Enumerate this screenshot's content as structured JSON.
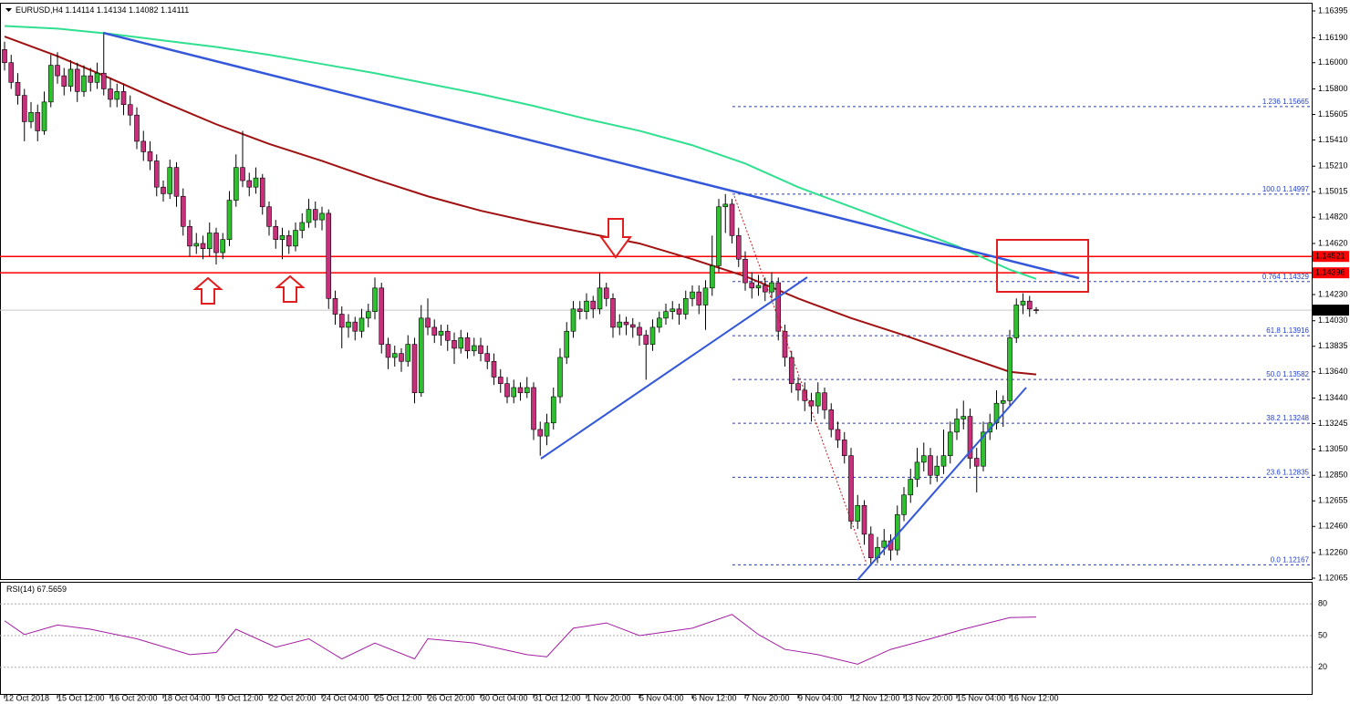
{
  "chart_data": {
    "type": "candlestick",
    "symbol": "EURUSD,H4",
    "up_color": "#2fc02f",
    "down_color": "#c8307c",
    "wick_color": "#000000",
    "ylim": [
      1.12065,
      1.16395
    ],
    "yticks": [
      1.16395,
      {
        "value": 1.1619,
        "label": "1.16190"
      },
      {
        "value": 1.16,
        "label": "1.16000"
      },
      {
        "value": 1.158,
        "label": "1.15800"
      },
      1.15605,
      {
        "value": 1.1541,
        "label": "1.15410"
      },
      {
        "value": 1.1521,
        "label": "1.15210"
      },
      1.15015,
      {
        "value": 1.1482,
        "label": "1.14820"
      },
      {
        "value": 1.1462,
        "label": "1.14620"
      },
      {
        "value": 1.1423,
        "label": "1.14230"
      },
      {
        "value": 1.1403,
        "label": "1.14030"
      },
      1.13835,
      {
        "value": 1.1364,
        "label": "1.13640"
      },
      {
        "value": 1.1344,
        "label": "1.13440"
      },
      1.13245,
      {
        "value": 1.1305,
        "label": "1.13050"
      },
      {
        "value": 1.1285,
        "label": "1.12850"
      },
      1.12655,
      {
        "value": 1.1246,
        "label": "1.12460"
      },
      {
        "value": 1.1226,
        "label": "1.12260"
      },
      1.12065
    ],
    "categories": [
      "12 Oct 2018",
      null,
      null,
      null,
      null,
      null,
      null,
      null,
      "15 Oct 12:00",
      null,
      null,
      null,
      null,
      null,
      null,
      null,
      "16 Oct 20:00",
      null,
      null,
      null,
      null,
      null,
      null,
      null,
      "18 Oct 04:00",
      null,
      null,
      null,
      null,
      null,
      null,
      null,
      "19 Oct 12:00",
      null,
      null,
      null,
      null,
      null,
      null,
      null,
      "22 Oct 20:00",
      null,
      null,
      null,
      null,
      null,
      null,
      null,
      "24 Oct 04:00",
      null,
      null,
      null,
      null,
      null,
      null,
      null,
      "25 Oct 12:00",
      null,
      null,
      null,
      null,
      null,
      null,
      null,
      "26 Oct 20:00",
      null,
      null,
      null,
      null,
      null,
      null,
      null,
      "30 Oct 04:00",
      null,
      null,
      null,
      null,
      null,
      null,
      null,
      "31 Oct 12:00",
      null,
      null,
      null,
      null,
      null,
      null,
      null,
      "1 Nov 20:00",
      null,
      null,
      null,
      null,
      null,
      null,
      null,
      "5 Nov 04:00",
      null,
      null,
      null,
      null,
      null,
      null,
      null,
      "6 Nov 12:00",
      null,
      null,
      null,
      null,
      null,
      null,
      null,
      "7 Nov 20:00",
      null,
      null,
      null,
      null,
      null,
      null,
      null,
      "9 Nov 04:00",
      null,
      null,
      null,
      null,
      null,
      null,
      null,
      "12 Nov 12:00",
      null,
      null,
      null,
      null,
      null,
      null,
      null,
      "13 Nov 20:00",
      null,
      null,
      null,
      null,
      null,
      null,
      null,
      "15 Nov 04:00",
      null,
      null,
      null,
      null,
      null,
      null,
      null,
      "16 Nov 12:00",
      null,
      null,
      null,
      null
    ],
    "ohlc": [
      [
        1.161,
        1.1616,
        1.1594,
        1.16
      ],
      [
        1.16,
        1.1606,
        1.158,
        1.1585
      ],
      [
        1.1585,
        1.1592,
        1.1568,
        1.1575
      ],
      [
        1.1575,
        1.158,
        1.154,
        1.1555
      ],
      [
        1.1555,
        1.157,
        1.155,
        1.1562
      ],
      [
        1.1562,
        1.1568,
        1.154,
        1.1548
      ],
      [
        1.1548,
        1.1578,
        1.1545,
        1.157
      ],
      [
        1.157,
        1.1606,
        1.1566,
        1.1598
      ],
      [
        1.1598,
        1.1608,
        1.1584,
        1.159
      ],
      [
        1.159,
        1.1596,
        1.1575,
        1.1582
      ],
      [
        1.1582,
        1.1602,
        1.1578,
        1.1595
      ],
      [
        1.1595,
        1.16,
        1.157,
        1.1578
      ],
      [
        1.1578,
        1.1598,
        1.1574,
        1.159
      ],
      [
        1.159,
        1.1596,
        1.1578,
        1.1585
      ],
      [
        1.1585,
        1.16,
        1.158,
        1.1592
      ],
      [
        1.1592,
        1.1623,
        1.1575,
        1.158
      ],
      [
        1.158,
        1.1588,
        1.1566,
        1.1572
      ],
      [
        1.1572,
        1.1584,
        1.1566,
        1.1578
      ],
      [
        1.1578,
        1.1584,
        1.156,
        1.1568
      ],
      [
        1.1568,
        1.1575,
        1.1552,
        1.156
      ],
      [
        1.156,
        1.1566,
        1.1534,
        1.154
      ],
      [
        1.154,
        1.1548,
        1.1525,
        1.1532
      ],
      [
        1.1532,
        1.154,
        1.1518,
        1.1525
      ],
      [
        1.1525,
        1.153,
        1.1498,
        1.1505
      ],
      [
        1.1505,
        1.151,
        1.1494,
        1.15
      ],
      [
        1.15,
        1.1526,
        1.1496,
        1.152
      ],
      [
        1.152,
        1.1524,
        1.149,
        1.1498
      ],
      [
        1.1498,
        1.1504,
        1.1468,
        1.1475
      ],
      [
        1.1475,
        1.148,
        1.1452,
        1.146
      ],
      [
        1.146,
        1.147,
        1.1454,
        1.1462
      ],
      [
        1.1462,
        1.1468,
        1.145,
        1.1458
      ],
      [
        1.1458,
        1.1478,
        1.1452,
        1.147
      ],
      [
        1.147,
        1.1474,
        1.1446,
        1.1455
      ],
      [
        1.1455,
        1.147,
        1.145,
        1.1465
      ],
      [
        1.1465,
        1.1502,
        1.146,
        1.1495
      ],
      [
        1.1495,
        1.153,
        1.149,
        1.152
      ],
      [
        1.152,
        1.1548,
        1.1505,
        1.151
      ],
      [
        1.151,
        1.1516,
        1.1498,
        1.1505
      ],
      [
        1.1505,
        1.152,
        1.15,
        1.1512
      ],
      [
        1.1512,
        1.1515,
        1.1484,
        1.149
      ],
      [
        1.149,
        1.1494,
        1.1468,
        1.1475
      ],
      [
        1.1475,
        1.148,
        1.1458,
        1.1465
      ],
      [
        1.1465,
        1.1474,
        1.145,
        1.1468
      ],
      [
        1.1468,
        1.1472,
        1.1454,
        1.146
      ],
      [
        1.146,
        1.1478,
        1.1456,
        1.1472
      ],
      [
        1.1472,
        1.1485,
        1.1466,
        1.1478
      ],
      [
        1.1478,
        1.1496,
        1.1474,
        1.1488
      ],
      [
        1.1488,
        1.1494,
        1.1474,
        1.148
      ],
      [
        1.148,
        1.149,
        1.1472,
        1.1485
      ],
      [
        1.1485,
        1.1488,
        1.1412,
        1.142
      ],
      [
        1.142,
        1.1426,
        1.14,
        1.1408
      ],
      [
        1.1408,
        1.1414,
        1.1382,
        1.1398
      ],
      [
        1.1398,
        1.1408,
        1.139,
        1.1402
      ],
      [
        1.1402,
        1.1406,
        1.1388,
        1.1395
      ],
      [
        1.1395,
        1.1412,
        1.139,
        1.1405
      ],
      [
        1.1405,
        1.1416,
        1.1398,
        1.141
      ],
      [
        1.141,
        1.1436,
        1.1404,
        1.1428
      ],
      [
        1.1428,
        1.1432,
        1.1378,
        1.1385
      ],
      [
        1.1385,
        1.139,
        1.1366,
        1.1375
      ],
      [
        1.1375,
        1.1384,
        1.1368,
        1.1378
      ],
      [
        1.1378,
        1.1382,
        1.1364,
        1.1372
      ],
      [
        1.1372,
        1.1392,
        1.1368,
        1.1385
      ],
      [
        1.1385,
        1.139,
        1.134,
        1.1348
      ],
      [
        1.1348,
        1.1415,
        1.1345,
        1.1405
      ],
      [
        1.1405,
        1.142,
        1.1392,
        1.1398
      ],
      [
        1.1398,
        1.1404,
        1.1386,
        1.1392
      ],
      [
        1.1392,
        1.14,
        1.1384,
        1.1395
      ],
      [
        1.1395,
        1.14,
        1.138,
        1.1388
      ],
      [
        1.1388,
        1.1394,
        1.137,
        1.1382
      ],
      [
        1.1382,
        1.1396,
        1.1378,
        1.139
      ],
      [
        1.139,
        1.1394,
        1.1374,
        1.138
      ],
      [
        1.138,
        1.139,
        1.1376,
        1.1384
      ],
      [
        1.1384,
        1.139,
        1.1372,
        1.1378
      ],
      [
        1.1378,
        1.1384,
        1.1366,
        1.1372
      ],
      [
        1.1372,
        1.1378,
        1.1354,
        1.136
      ],
      [
        1.136,
        1.1366,
        1.1348,
        1.1355
      ],
      [
        1.1355,
        1.136,
        1.134,
        1.1345
      ],
      [
        1.1345,
        1.1358,
        1.134,
        1.1352
      ],
      [
        1.1352,
        1.1356,
        1.1342,
        1.1348
      ],
      [
        1.1348,
        1.136,
        1.1344,
        1.1352
      ],
      [
        1.1352,
        1.1356,
        1.1312,
        1.132
      ],
      [
        1.132,
        1.1326,
        1.13,
        1.1315
      ],
      [
        1.1315,
        1.1332,
        1.1308,
        1.1325
      ],
      [
        1.1325,
        1.1352,
        1.132,
        1.1345
      ],
      [
        1.1345,
        1.1382,
        1.134,
        1.1375
      ],
      [
        1.1375,
        1.1402,
        1.137,
        1.1395
      ],
      [
        1.1395,
        1.1418,
        1.139,
        1.1412
      ],
      [
        1.1412,
        1.1418,
        1.1404,
        1.141
      ],
      [
        1.141,
        1.1424,
        1.1404,
        1.1418
      ],
      [
        1.1418,
        1.1422,
        1.1405,
        1.1412
      ],
      [
        1.1412,
        1.144,
        1.1408,
        1.1428
      ],
      [
        1.1428,
        1.1432,
        1.1414,
        1.142
      ],
      [
        1.142,
        1.1424,
        1.139,
        1.1398
      ],
      [
        1.1398,
        1.1408,
        1.1392,
        1.1402
      ],
      [
        1.1402,
        1.1406,
        1.1392,
        1.14
      ],
      [
        1.14,
        1.1405,
        1.139,
        1.1398
      ],
      [
        1.1398,
        1.1402,
        1.1384,
        1.1392
      ],
      [
        1.1392,
        1.1396,
        1.1358,
        1.1385
      ],
      [
        1.1385,
        1.1404,
        1.138,
        1.1398
      ],
      [
        1.1398,
        1.141,
        1.1394,
        1.1405
      ],
      [
        1.1405,
        1.1416,
        1.14,
        1.141
      ],
      [
        1.141,
        1.1418,
        1.1404,
        1.1412
      ],
      [
        1.1412,
        1.1416,
        1.14,
        1.1408
      ],
      [
        1.1408,
        1.1426,
        1.1404,
        1.142
      ],
      [
        1.142,
        1.143,
        1.1414,
        1.1425
      ],
      [
        1.1425,
        1.143,
        1.1408,
        1.1415
      ],
      [
        1.1415,
        1.1434,
        1.1396,
        1.1428
      ],
      [
        1.1428,
        1.1468,
        1.1422,
        1.1445
      ],
      [
        1.1445,
        1.1496,
        1.144,
        1.149
      ],
      [
        1.149,
        1.14997,
        1.147,
        1.1492
      ],
      [
        1.1492,
        1.1496,
        1.1462,
        1.1468
      ],
      [
        1.1468,
        1.1474,
        1.1444,
        1.145
      ],
      [
        1.145,
        1.1456,
        1.1426,
        1.1432
      ],
      [
        1.1432,
        1.144,
        1.142,
        1.1428
      ],
      [
        1.1428,
        1.1438,
        1.1422,
        1.143
      ],
      [
        1.143,
        1.1436,
        1.1418,
        1.1425
      ],
      [
        1.1425,
        1.144,
        1.142,
        1.1432
      ],
      [
        1.1432,
        1.1436,
        1.1388,
        1.1395
      ],
      [
        1.1395,
        1.14,
        1.1368,
        1.1375
      ],
      [
        1.1375,
        1.138,
        1.1348,
        1.1355
      ],
      [
        1.1355,
        1.136,
        1.1342,
        1.135
      ],
      [
        1.135,
        1.1356,
        1.1334,
        1.1342
      ],
      [
        1.1342,
        1.1348,
        1.1326,
        1.1338
      ],
      [
        1.1338,
        1.1356,
        1.1332,
        1.1348
      ],
      [
        1.1348,
        1.1352,
        1.1328,
        1.1335
      ],
      [
        1.1335,
        1.134,
        1.1314,
        1.132
      ],
      [
        1.132,
        1.1326,
        1.1306,
        1.1312
      ],
      [
        1.1312,
        1.1318,
        1.1294,
        1.13
      ],
      [
        1.13,
        1.1306,
        1.1244,
        1.125
      ],
      [
        1.125,
        1.127,
        1.1244,
        1.1262
      ],
      [
        1.1262,
        1.1266,
        1.1232,
        1.124
      ],
      [
        1.124,
        1.1246,
        1.12167,
        1.1222
      ],
      [
        1.1222,
        1.1238,
        1.1218,
        1.123
      ],
      [
        1.123,
        1.1244,
        1.1224,
        1.1235
      ],
      [
        1.1235,
        1.124,
        1.122,
        1.1228
      ],
      [
        1.1228,
        1.1262,
        1.1224,
        1.1255
      ],
      [
        1.1255,
        1.1276,
        1.125,
        1.127
      ],
      [
        1.127,
        1.129,
        1.1264,
        1.1282
      ],
      [
        1.1282,
        1.1306,
        1.1276,
        1.1295
      ],
      [
        1.1295,
        1.131,
        1.1288,
        1.13
      ],
      [
        1.13,
        1.1306,
        1.1278,
        1.1285
      ],
      [
        1.1285,
        1.13,
        1.128,
        1.1292
      ],
      [
        1.1292,
        1.132,
        1.1286,
        1.13
      ],
      [
        1.13,
        1.1326,
        1.1294,
        1.1318
      ],
      [
        1.1318,
        1.1336,
        1.1312,
        1.1328
      ],
      [
        1.1328,
        1.1342,
        1.132,
        1.133
      ],
      [
        1.133,
        1.1336,
        1.129,
        1.1298
      ],
      [
        1.1298,
        1.1306,
        1.1272,
        1.1292
      ],
      [
        1.1292,
        1.1326,
        1.1288,
        1.1318
      ],
      [
        1.1318,
        1.1332,
        1.1312,
        1.1325
      ],
      [
        1.1325,
        1.135,
        1.132,
        1.134
      ],
      [
        1.134,
        1.1346,
        1.1322,
        1.1342
      ],
      [
        1.1342,
        1.1396,
        1.1338,
        1.139
      ],
      [
        1.139,
        1.142,
        1.1386,
        1.1415
      ],
      [
        1.1415,
        1.1424,
        1.1408,
        1.1418
      ],
      [
        1.1418,
        1.1422,
        1.1406,
        1.1412
      ],
      [
        1.14114,
        1.14134,
        1.14082,
        1.14111
      ]
    ],
    "series": [
      {
        "color": "#a01212",
        "x": [
          0,
          8,
          16,
          24,
          32,
          40,
          48,
          56,
          64,
          72,
          80,
          88,
          96,
          104,
          112,
          120,
          128,
          136,
          144,
          152,
          156
        ],
        "values": [
          1.162,
          1.1605,
          1.1588,
          1.157,
          1.1553,
          1.1538,
          1.1525,
          1.1511,
          1.1498,
          1.1487,
          1.1478,
          1.147,
          1.1462,
          1.145,
          1.1437,
          1.142,
          1.1405,
          1.1392,
          1.1378,
          1.1364,
          1.1362
        ]
      },
      {
        "color": "#30e090",
        "x": [
          0,
          8,
          16,
          24,
          32,
          40,
          48,
          56,
          64,
          72,
          80,
          88,
          96,
          104,
          112,
          120,
          128,
          136,
          144,
          152,
          156
        ],
        "values": [
          1.1628,
          1.1626,
          1.1622,
          1.1617,
          1.1612,
          1.1606,
          1.1599,
          1.1592,
          1.1584,
          1.1576,
          1.1567,
          1.1557,
          1.1548,
          1.1537,
          1.1523,
          1.1505,
          1.149,
          1.1475,
          1.146,
          1.1442,
          1.1435
        ]
      }
    ],
    "levels": [
      {
        "value": 1.14521,
        "color": "#ff0000"
      },
      {
        "value": 1.14396,
        "color": "#ff0000"
      }
    ],
    "fibonacci": [
      {
        "level": "1.236",
        "value": 1.15665
      },
      {
        "level": "100.0",
        "value": 1.14997
      },
      {
        "level": "0.764",
        "value": 1.14329
      },
      {
        "level": "61.8",
        "value": 1.13916
      },
      {
        "level": "50.0",
        "value": 1.13582
      },
      {
        "level": "38.2",
        "value": 1.13248
      },
      {
        "level": "23.6",
        "value": 1.12835
      },
      {
        "level": "0.0",
        "value": 1.12167
      }
    ],
    "fib_color": "#1f3fd0",
    "rsi": {
      "name": "RSI(14)",
      "color": "#a21ca2",
      "ylim": [
        0,
        100
      ],
      "yticks": [
        20,
        50,
        80
      ],
      "x": [
        0,
        3,
        8,
        13,
        20,
        28,
        32,
        35,
        41,
        46,
        51,
        56,
        62,
        64,
        71,
        79,
        82,
        86,
        91,
        96,
        104,
        110,
        114,
        118,
        123,
        129,
        134,
        140,
        145,
        152,
        156
      ],
      "values": [
        64,
        51,
        60,
        56,
        47,
        32,
        34,
        56,
        39,
        47,
        28,
        43,
        28,
        47,
        43,
        32,
        30,
        57,
        62,
        50,
        57,
        70,
        51,
        37,
        32,
        23,
        37,
        47,
        56,
        67,
        67.5659
      ]
    }
  }
}
